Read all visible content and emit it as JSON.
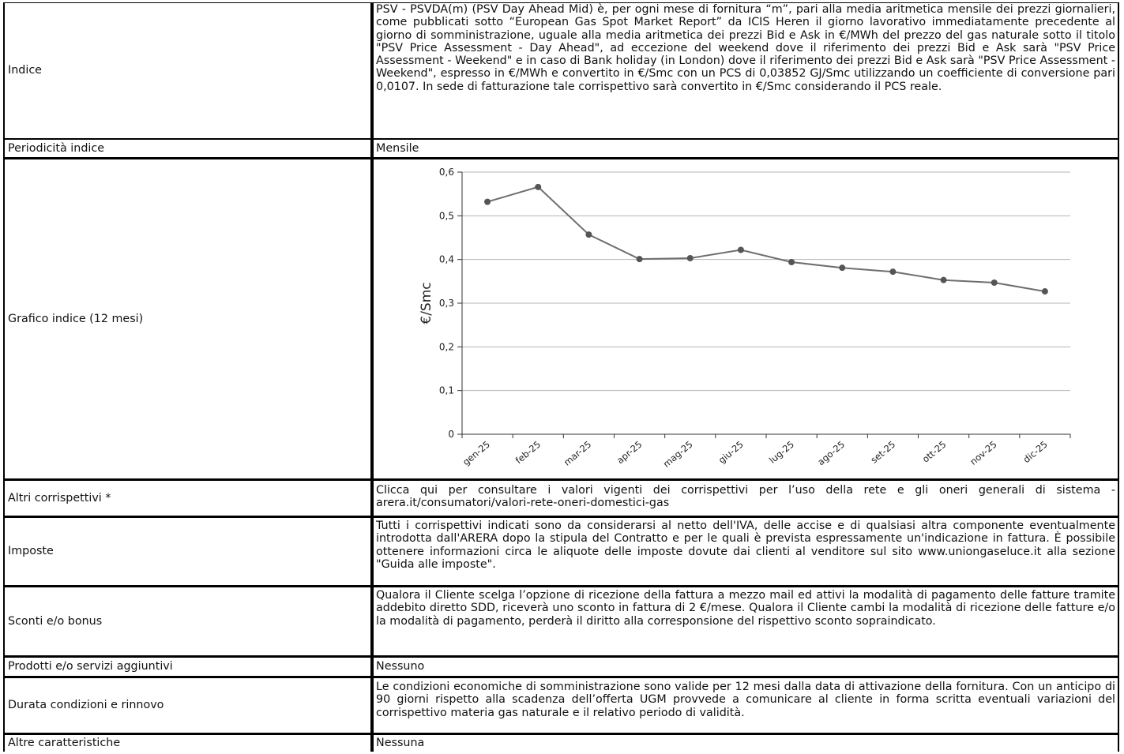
{
  "rows": {
    "indice": {
      "label": "Indice",
      "value": "PSV - PSVDA(m) (PSV Day Ahead Mid) è, per ogni mese di fornitura “m”, pari alla media aritmetica mensile dei prezzi giornalieri, come pubblicati sotto “European Gas Spot Market Report” da ICIS Heren il giorno lavorativo immediatamente precedente al giorno di somministrazione, uguale alla media aritmetica dei prezzi Bid e Ask in €/MWh del prezzo del gas naturale sotto il titolo \"PSV Price Assessment - Day Ahead\", ad eccezione del weekend dove il riferimento dei prezzi Bid e Ask sarà \"PSV Price Assessment - Weekend\" e in caso di Bank holiday (in London) dove il riferimento dei prezzi Bid e Ask sarà \"PSV Price Assessment - Weekend\", espresso in €/MWh e convertito in €/Smc con un PCS di 0,03852 GJ/Smc utilizzando un coefficiente di conversione pari 0,0107. In sede di fatturazione tale corrispettivo sarà convertito in €/Smc considerando il PCS reale."
    },
    "periodicita": {
      "label": "Periodicità indice",
      "value": "Mensile"
    },
    "grafico": {
      "label": "Grafico indice (12 mesi)"
    },
    "altri": {
      "label": "Altri corrispettivi *",
      "value": "Clicca qui per consultare i valori vigenti dei corrispettivi per l’uso della rete e gli oneri generali di sistema - arera.it/consumatori/valori-rete-oneri-domestici-gas"
    },
    "imposte": {
      "label": "Imposte",
      "value": "Tutti i corrispettivi indicati sono da considerarsi al netto dell'IVA, delle accise e di qualsiasi altra componente eventualmente introdotta dall'ARERA dopo la stipula del Contratto e per le quali è prevista espressamente un'indicazione in fattura. È possibile ottenere informazioni circa le aliquote delle imposte dovute dai clienti al venditore sul sito www.uniongaseluce.it alla sezione \"Guida alle imposte\"."
    },
    "sconti": {
      "label": "Sconti e/o bonus",
      "value": "Qualora il Cliente scelga l’opzione di ricezione della fattura a mezzo mail ed attivi la modalità di pagamento delle fatture tramite addebito diretto SDD, riceverà uno sconto in fattura di 2 €/mese. Qualora il Cliente cambi la modalità di ricezione delle fatture e/o la modalità di pagamento, perderà il diritto alla corresponsione del rispettivo sconto sopraindicato."
    },
    "prodotti": {
      "label": "Prodotti e/o servizi aggiuntivi",
      "value": "Nessuno"
    },
    "durata": {
      "label": "Durata condizioni e rinnovo",
      "value": "Le condizioni economiche di somministrazione sono valide per 12 mesi dalla data di attivazione della fornitura. Con un anticipo di 90 giorni rispetto alla scadenza dell’offerta UGM provvede a comunicare al cliente in forma scritta eventuali variazioni del corrispettivo materia gas naturale e il relativo periodo di validità."
    },
    "altre": {
      "label": "Altre caratteristiche",
      "value": "Nessuna"
    }
  },
  "chart_data": {
    "type": "line",
    "title": "",
    "xlabel": "",
    "ylabel": "€/Smc",
    "categories": [
      "gen-25",
      "feb-25",
      "mar-25",
      "apr-25",
      "mag-25",
      "giu-25",
      "lug-25",
      "ago-25",
      "set-25",
      "ott-25",
      "nov-25",
      "dic-25"
    ],
    "values": [
      0.532,
      0.566,
      0.457,
      0.401,
      0.403,
      0.422,
      0.394,
      0.381,
      0.372,
      0.353,
      0.347,
      0.327
    ],
    "ylim": [
      0,
      0.6
    ],
    "yticks": [
      "0",
      "0,1",
      "0,2",
      "0,3",
      "0,4",
      "0,5",
      "0,6"
    ],
    "grid": true,
    "legend": "none",
    "line_color": "#6e6e6e",
    "marker_color": "#555555",
    "grid_color": "#b5b5b5"
  }
}
